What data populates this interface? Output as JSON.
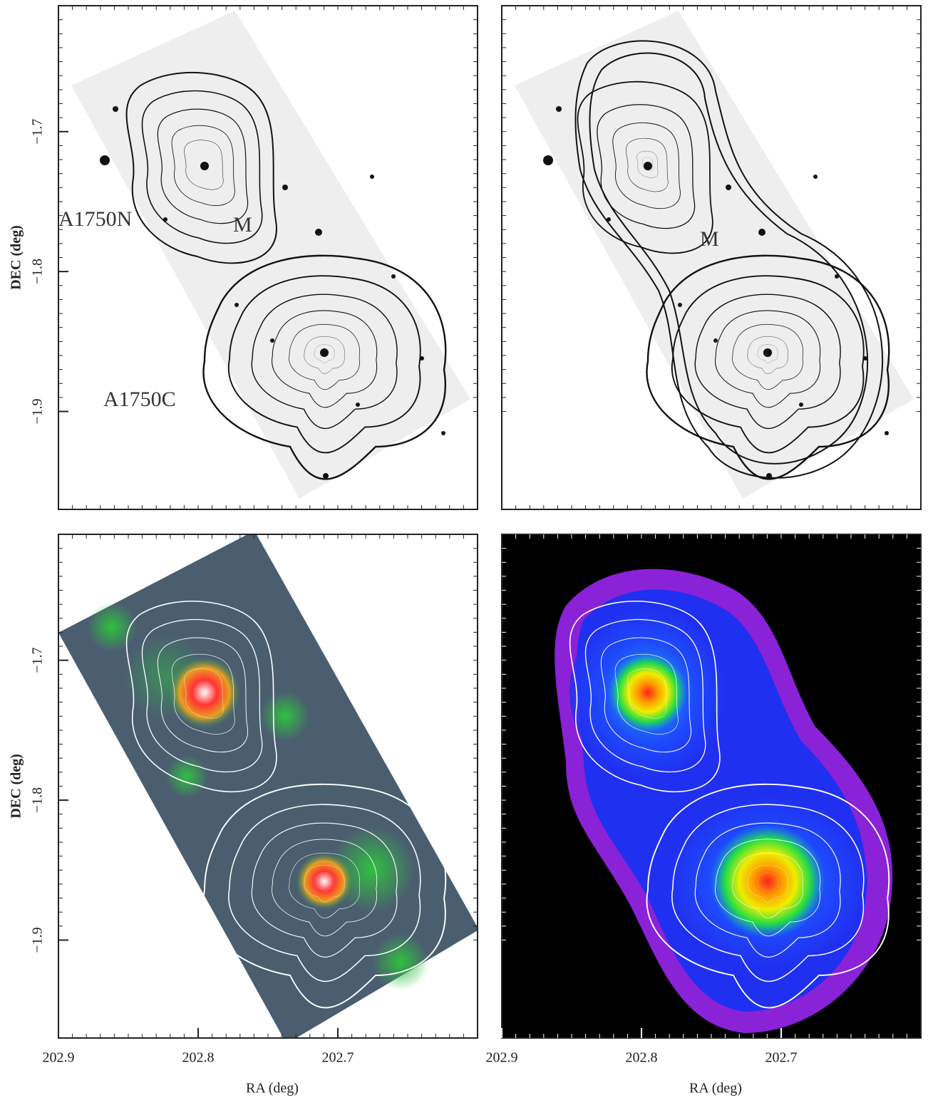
{
  "chart_data": [
    {
      "type": "image",
      "xlim": [
        202.9,
        202.6
      ],
      "ylim": [
        -1.97,
        -1.61
      ],
      "ylabel": "DEC (deg)",
      "yticks": [
        {
          "value": -1.7,
          "label": "−1.7"
        },
        {
          "value": -1.8,
          "label": "−1.8"
        },
        {
          "value": -1.9,
          "label": "−1.9"
        }
      ],
      "annotations": [
        "A1750N",
        "M",
        "A1750C"
      ]
    },
    {
      "type": "image",
      "xlim": [
        202.9,
        202.6
      ],
      "ylim": [
        -1.97,
        -1.61
      ],
      "annotations": [
        "M"
      ]
    },
    {
      "type": "image",
      "xlim": [
        202.9,
        202.6
      ],
      "ylim": [
        -1.97,
        -1.61
      ],
      "ylabel": "DEC (deg)",
      "xlabel": "RA (deg)",
      "yticks": [
        {
          "value": -1.7,
          "label": "−1.7"
        },
        {
          "value": -1.8,
          "label": "−1.8"
        },
        {
          "value": -1.9,
          "label": "−1.9"
        }
      ],
      "xticks": [
        202.9,
        202.8,
        202.7
      ]
    },
    {
      "type": "image",
      "xlim": [
        202.9,
        202.6
      ],
      "ylim": [
        -1.97,
        -1.61
      ],
      "xlabel": "RA (deg)",
      "xticks": [
        202.9,
        202.8,
        202.7
      ]
    }
  ]
}
